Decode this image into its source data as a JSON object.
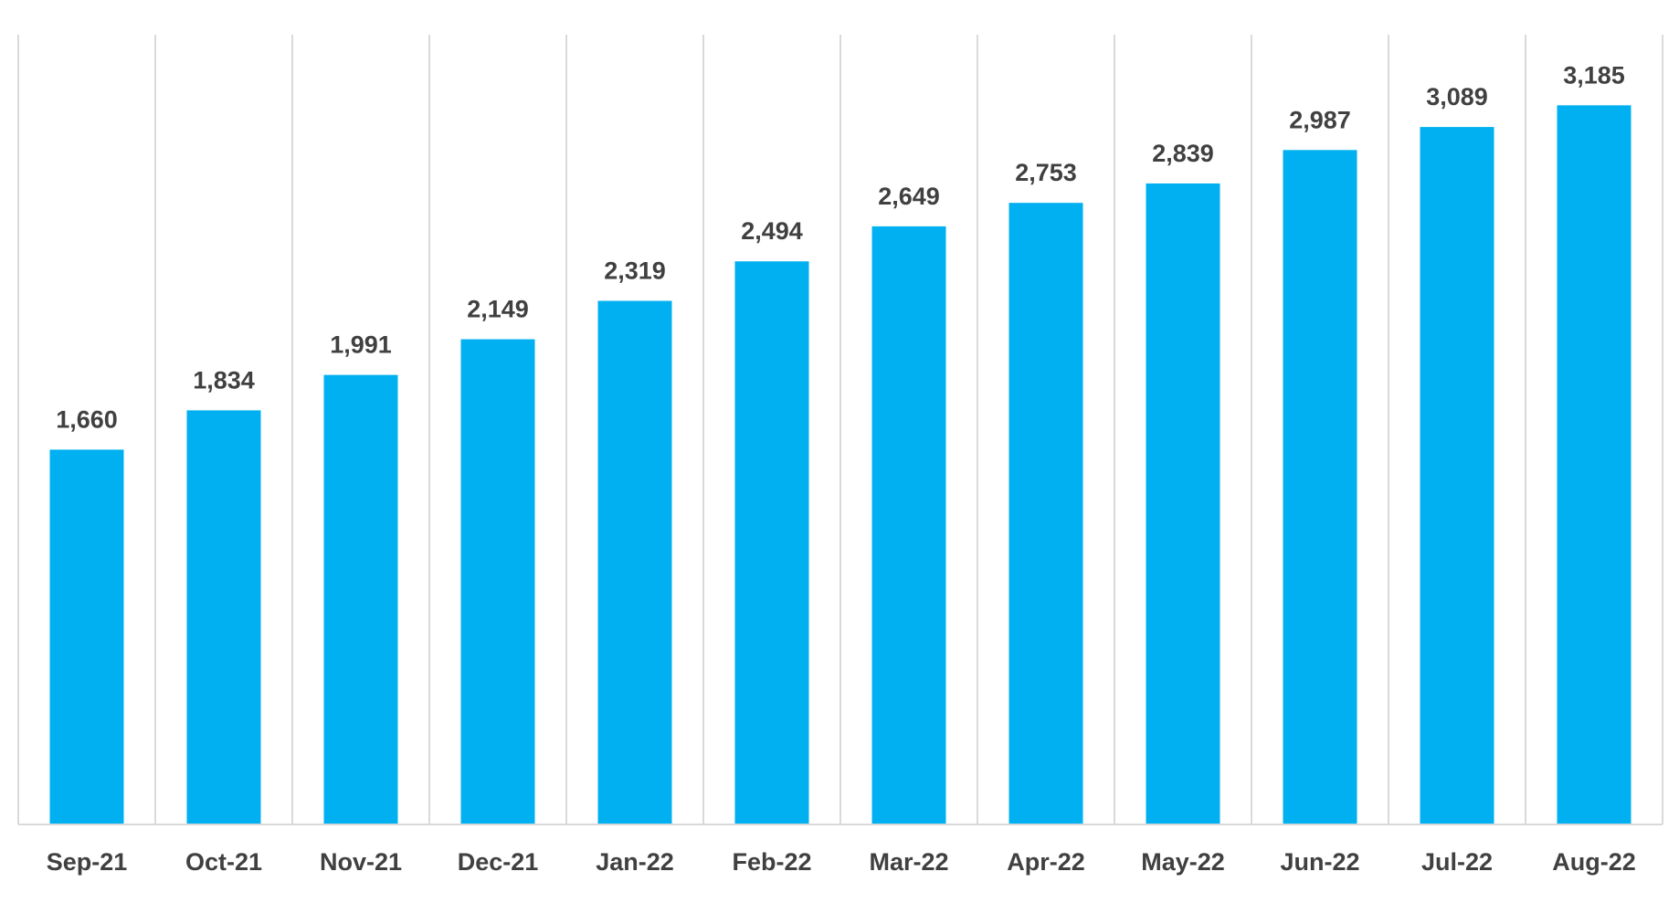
{
  "chart_data": {
    "type": "bar",
    "title": "",
    "xlabel": "",
    "ylabel": "",
    "categories": [
      "Sep-21",
      "Oct-21",
      "Nov-21",
      "Dec-21",
      "Jan-22",
      "Feb-22",
      "Mar-22",
      "Apr-22",
      "May-22",
      "Jun-22",
      "Jul-22",
      "Aug-22"
    ],
    "values": [
      1660,
      1834,
      1991,
      2149,
      2319,
      2494,
      2649,
      2753,
      2839,
      2987,
      3089,
      3185
    ],
    "value_labels": [
      "1,660",
      "1,834",
      "1,991",
      "2,149",
      "2,319",
      "2,494",
      "2,649",
      "2,753",
      "2,839",
      "2,987",
      "3,089",
      "3,185"
    ],
    "ylim": [
      0,
      3500
    ],
    "grid": "vertical",
    "legend": "none",
    "colors": {
      "bar": "#00b0f0",
      "grid": "#d9d9d9",
      "text": "#404040"
    }
  }
}
